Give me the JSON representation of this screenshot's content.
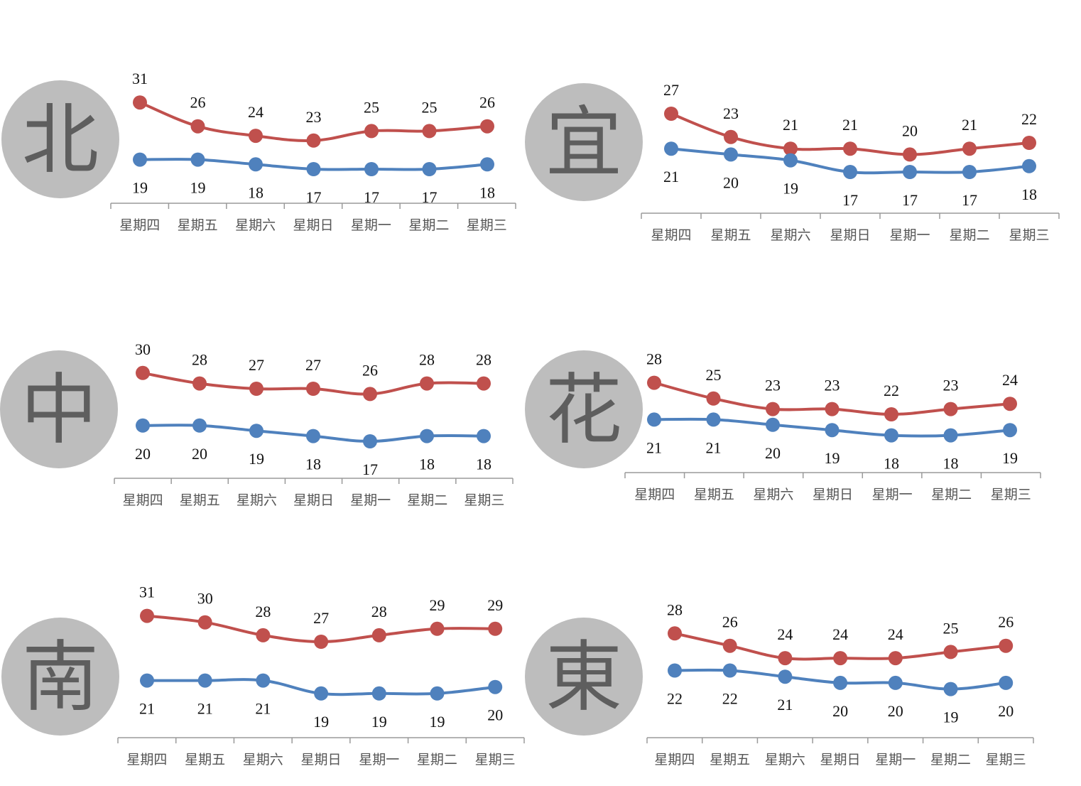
{
  "colors": {
    "high": "#c0504d",
    "low": "#4f81bd",
    "circle": "#bdbdbd",
    "axis": "#9a9a9a",
    "region_char": "#5e5e5e"
  },
  "chart_data": [
    {
      "type": "line",
      "region": "北",
      "categories": [
        "星期四",
        "星期五",
        "星期六",
        "星期日",
        "星期一",
        "星期二",
        "星期三"
      ],
      "series": [
        {
          "values": [
            31,
            26,
            24,
            23,
            25,
            25,
            26
          ]
        },
        {
          "values": [
            19,
            19,
            18,
            17,
            17,
            17,
            18
          ]
        }
      ],
      "ylim": [
        15,
        33
      ]
    },
    {
      "type": "line",
      "region": "宜",
      "categories": [
        "星期四",
        "星期五",
        "星期六",
        "星期日",
        "星期一",
        "星期二",
        "星期三"
      ],
      "series": [
        {
          "values": [
            27,
            23,
            21,
            21,
            20,
            21,
            22
          ]
        },
        {
          "values": [
            21,
            20,
            19,
            17,
            17,
            17,
            18
          ]
        }
      ],
      "ylim": [
        15,
        33
      ]
    },
    {
      "type": "line",
      "region": "中",
      "categories": [
        "星期四",
        "星期五",
        "星期六",
        "星期日",
        "星期一",
        "星期二",
        "星期三"
      ],
      "series": [
        {
          "values": [
            30,
            28,
            27,
            27,
            26,
            28,
            28
          ]
        },
        {
          "values": [
            20,
            20,
            19,
            18,
            17,
            18,
            18
          ]
        }
      ],
      "ylim": [
        15,
        33
      ]
    },
    {
      "type": "line",
      "region": "花",
      "categories": [
        "星期四",
        "星期五",
        "星期六",
        "星期日",
        "星期一",
        "星期二",
        "星期三"
      ],
      "series": [
        {
          "values": [
            28,
            25,
            23,
            23,
            22,
            23,
            24
          ]
        },
        {
          "values": [
            21,
            21,
            20,
            19,
            18,
            18,
            19
          ]
        }
      ],
      "ylim": [
        15,
        33
      ]
    },
    {
      "type": "line",
      "region": "南",
      "categories": [
        "星期四",
        "星期五",
        "星期六",
        "星期日",
        "星期一",
        "星期二",
        "星期三"
      ],
      "series": [
        {
          "values": [
            31,
            30,
            28,
            27,
            28,
            29,
            29
          ]
        },
        {
          "values": [
            21,
            21,
            21,
            19,
            19,
            19,
            20
          ]
        }
      ],
      "ylim": [
        15,
        33
      ]
    },
    {
      "type": "line",
      "region": "東",
      "categories": [
        "星期四",
        "星期五",
        "星期六",
        "星期日",
        "星期一",
        "星期二",
        "星期三"
      ],
      "series": [
        {
          "values": [
            28,
            26,
            24,
            24,
            24,
            25,
            26
          ]
        },
        {
          "values": [
            22,
            22,
            21,
            20,
            20,
            19,
            20
          ]
        }
      ],
      "ylim": [
        15,
        33
      ]
    }
  ]
}
